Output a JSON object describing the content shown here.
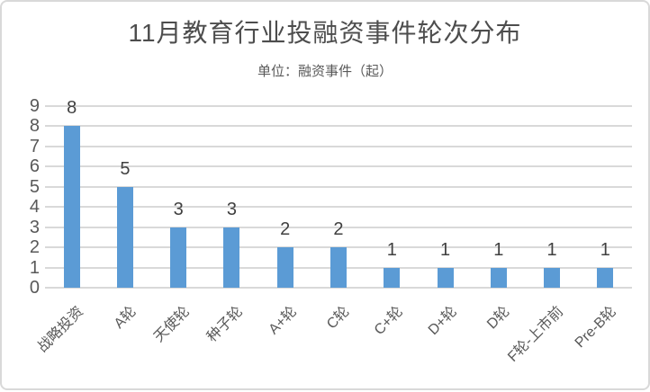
{
  "header": {
    "title": "11月教育行业投融资事件轮次分布",
    "subtitle": "单位：融资事件（起）"
  },
  "chart_data": {
    "type": "bar",
    "title": "11月教育行业投融资事件轮次分布",
    "subtitle": "单位：融资事件（起）",
    "categories": [
      "战略投资",
      "A轮",
      "天使轮",
      "种子轮",
      "A+轮",
      "C轮",
      "C+轮",
      "D+轮",
      "D轮",
      "F轮-上市前",
      "Pre-B轮"
    ],
    "values": [
      8,
      5,
      3,
      3,
      2,
      2,
      1,
      1,
      1,
      1,
      1
    ],
    "xlabel": "",
    "ylabel": "",
    "ylim": [
      0,
      9
    ],
    "yticks": [
      0,
      1,
      2,
      3,
      4,
      5,
      6,
      7,
      8,
      9
    ],
    "grid": true,
    "legend": false,
    "data_labels": true,
    "x_label_rotation_deg": -45,
    "colors": {
      "bar": "#5b9bd5",
      "gridline": "#d9d9d9",
      "axis_label": "#595959",
      "data_label": "#404040",
      "title": "#4d4d4d",
      "card_border": "#d9d9d9",
      "background": "#ffffff"
    }
  }
}
